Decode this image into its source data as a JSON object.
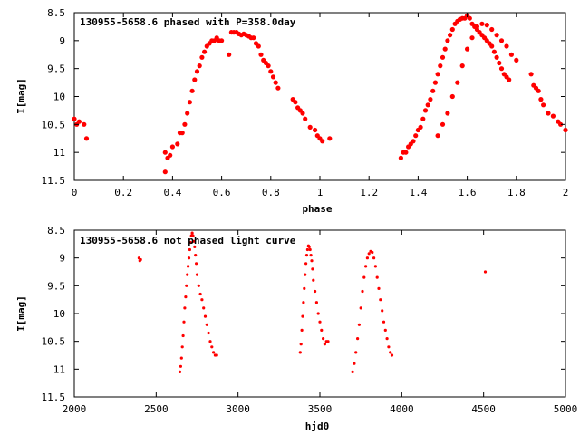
{
  "colors": {
    "points": "#ff0000",
    "axes": "#000000",
    "background": "#ffffff"
  },
  "chart_data": [
    {
      "type": "scatter",
      "title": "130955-5658.6 phased with P=358.0day",
      "xlabel": "phase",
      "ylabel": "I[mag]",
      "xlim": [
        0,
        2
      ],
      "ylim": [
        8.5,
        11.5
      ],
      "y_inverted": true,
      "grid": false,
      "x_ticks": [
        "0",
        "0.2",
        "0.4",
        "0.6",
        "0.8",
        "1",
        "1.2",
        "1.4",
        "1.6",
        "1.8",
        "2"
      ],
      "y_ticks": [
        "8.5",
        "9",
        "9.5",
        "10",
        "10.5",
        "11",
        "11.5"
      ],
      "series": [
        {
          "marker": "filled-circle",
          "x": [
            0.0,
            0.01,
            0.02,
            0.04,
            0.05,
            0.37,
            0.38,
            0.39,
            0.4,
            0.37,
            0.42,
            0.43,
            0.44,
            0.45,
            0.46,
            0.47,
            0.48,
            0.49,
            0.5,
            0.51,
            0.52,
            0.53,
            0.54,
            0.55,
            0.56,
            0.57,
            0.58,
            0.59,
            0.6,
            0.63,
            0.64,
            0.65,
            0.66,
            0.67,
            0.68,
            0.69,
            0.7,
            0.71,
            0.72,
            0.73,
            0.74,
            0.75,
            0.76,
            0.77,
            0.78,
            0.79,
            0.8,
            0.81,
            0.82,
            0.83,
            0.89,
            0.9,
            0.91,
            0.92,
            0.93,
            0.94,
            0.96,
            0.98,
            0.99,
            1.0,
            1.01,
            1.04,
            1.33,
            1.34,
            1.35,
            1.36,
            1.37,
            1.38,
            1.39,
            1.4,
            1.41,
            1.42,
            1.43,
            1.44,
            1.45,
            1.46,
            1.47,
            1.48,
            1.49,
            1.5,
            1.51,
            1.52,
            1.53,
            1.54,
            1.55,
            1.56,
            1.57,
            1.58,
            1.59,
            1.6,
            1.61,
            1.62,
            1.63,
            1.64,
            1.65,
            1.66,
            1.67,
            1.68,
            1.69,
            1.7,
            1.71,
            1.72,
            1.73,
            1.74,
            1.75,
            1.76,
            1.77,
            1.48,
            1.5,
            1.52,
            1.54,
            1.56,
            1.58,
            1.6,
            1.62,
            1.64,
            1.66,
            1.68,
            1.7,
            1.72,
            1.74,
            1.76,
            1.78,
            1.8,
            1.86,
            1.87,
            1.88,
            1.89,
            1.9,
            1.91,
            1.93,
            1.95,
            1.97,
            1.98,
            2.0
          ],
          "y": [
            10.4,
            10.5,
            10.45,
            10.5,
            10.75,
            11.0,
            11.1,
            11.05,
            10.9,
            11.35,
            10.85,
            10.65,
            10.65,
            10.5,
            10.3,
            10.1,
            9.9,
            9.7,
            9.55,
            9.45,
            9.3,
            9.2,
            9.1,
            9.05,
            9.0,
            9.0,
            8.95,
            9.0,
            9.0,
            9.25,
            8.85,
            8.85,
            8.85,
            8.88,
            8.9,
            8.88,
            8.9,
            8.92,
            8.95,
            8.95,
            9.05,
            9.1,
            9.25,
            9.35,
            9.4,
            9.45,
            9.55,
            9.65,
            9.75,
            9.85,
            10.05,
            10.1,
            10.2,
            10.25,
            10.3,
            10.4,
            10.55,
            10.6,
            10.7,
            10.75,
            10.8,
            10.75,
            11.1,
            11.0,
            11.0,
            10.9,
            10.85,
            10.8,
            10.7,
            10.6,
            10.55,
            10.4,
            10.25,
            10.15,
            10.05,
            9.9,
            9.75,
            9.6,
            9.45,
            9.3,
            9.15,
            9.0,
            8.9,
            8.8,
            8.7,
            8.65,
            8.62,
            8.6,
            8.6,
            8.55,
            8.6,
            8.7,
            8.75,
            8.8,
            8.85,
            8.9,
            8.95,
            9.0,
            9.05,
            9.1,
            9.2,
            9.3,
            9.4,
            9.5,
            9.6,
            9.65,
            9.7,
            10.7,
            10.5,
            10.3,
            10.0,
            9.75,
            9.45,
            9.15,
            8.95,
            8.75,
            8.7,
            8.72,
            8.8,
            8.9,
            9.0,
            9.1,
            9.25,
            9.35,
            9.6,
            9.8,
            9.85,
            9.9,
            10.05,
            10.15,
            10.3,
            10.35,
            10.45,
            10.5,
            10.6
          ]
        }
      ]
    },
    {
      "type": "scatter",
      "title": "130955-5658.6 not phased light curve",
      "xlabel": "hjd0",
      "ylabel": "I[mag]",
      "xlim": [
        2000,
        5000
      ],
      "ylim": [
        8.5,
        11.5
      ],
      "y_inverted": true,
      "grid": false,
      "x_ticks": [
        "2000",
        "2500",
        "3000",
        "3500",
        "4000",
        "4500",
        "5000"
      ],
      "y_ticks": [
        "8.5",
        "9",
        "9.5",
        "10",
        "10.5",
        "11",
        "11.5"
      ],
      "series": [
        {
          "marker": "small-filled-circle",
          "x": [
            2395,
            2400,
            2405,
            2645,
            2650,
            2655,
            2660,
            2665,
            2670,
            2675,
            2680,
            2685,
            2690,
            2695,
            2700,
            2705,
            2710,
            2715,
            2720,
            2725,
            2730,
            2735,
            2740,
            2745,
            2750,
            2760,
            2770,
            2780,
            2790,
            2800,
            2810,
            2820,
            2830,
            2840,
            2850,
            2860,
            2870,
            3380,
            3385,
            3390,
            3395,
            3400,
            3405,
            3410,
            3415,
            3420,
            3425,
            3430,
            3435,
            3440,
            3445,
            3450,
            3455,
            3460,
            3470,
            3480,
            3490,
            3500,
            3510,
            3520,
            3530,
            3540,
            3550,
            3700,
            3710,
            3720,
            3730,
            3740,
            3750,
            3760,
            3770,
            3780,
            3790,
            3800,
            3810,
            3820,
            3830,
            3840,
            3850,
            3860,
            3870,
            3880,
            3890,
            3900,
            3910,
            3920,
            3930,
            3940,
            4510
          ],
          "y": [
            9.0,
            9.05,
            9.03,
            11.05,
            10.95,
            10.8,
            10.6,
            10.4,
            10.15,
            9.9,
            9.7,
            9.5,
            9.3,
            9.15,
            9.0,
            8.85,
            8.72,
            8.6,
            8.55,
            8.6,
            8.7,
            8.8,
            8.95,
            9.1,
            9.3,
            9.5,
            9.65,
            9.75,
            9.9,
            10.05,
            10.2,
            10.35,
            10.5,
            10.6,
            10.7,
            10.75,
            10.75,
            10.7,
            10.55,
            10.3,
            10.05,
            9.8,
            9.55,
            9.3,
            9.1,
            8.95,
            8.85,
            8.78,
            8.8,
            8.85,
            8.95,
            9.05,
            9.2,
            9.4,
            9.6,
            9.8,
            10.0,
            10.15,
            10.3,
            10.45,
            10.55,
            10.5,
            10.5,
            11.05,
            10.9,
            10.7,
            10.45,
            10.2,
            9.9,
            9.6,
            9.35,
            9.15,
            9.0,
            8.92,
            8.88,
            8.9,
            9.0,
            9.15,
            9.35,
            9.55,
            9.75,
            9.95,
            10.15,
            10.3,
            10.45,
            10.6,
            10.7,
            10.75,
            9.25
          ]
        }
      ]
    }
  ]
}
